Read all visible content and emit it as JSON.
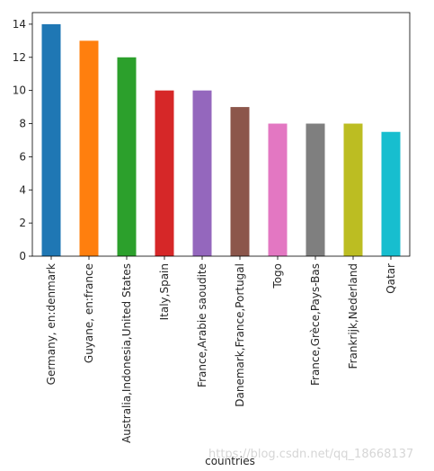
{
  "chart_data": {
    "type": "bar",
    "categories": [
      "Germany, en:denmark",
      "Guyane, en:france",
      "Australia,Indonesia,United States",
      "Italy,Spain",
      "France,Arabie saoudite",
      "Danemark,France,Portugal",
      "Togo",
      "France,Grèce,Pays-Bas",
      "Frankrijk,Nederland",
      "Qatar"
    ],
    "values": [
      14,
      13,
      12,
      10,
      10,
      9,
      8,
      8,
      8,
      7.5
    ],
    "colors": [
      "#1f77b4",
      "#ff7f0e",
      "#2ca02c",
      "#d62728",
      "#9467bd",
      "#8c564b",
      "#e377c2",
      "#7f7f7f",
      "#bcbd22",
      "#17becf"
    ],
    "yticks": [
      0,
      2,
      4,
      6,
      8,
      10,
      12,
      14
    ],
    "ylim": [
      0,
      14.7
    ],
    "xlabel": "countries",
    "ylabel": "",
    "grid": false
  },
  "watermark": "https://blog.csdn.net/qq_18668137"
}
